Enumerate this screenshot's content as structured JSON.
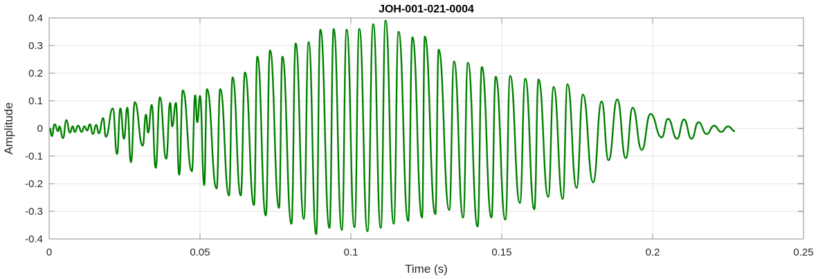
{
  "chart_data": {
    "type": "line",
    "title": "JOH-001-021-0004",
    "xlabel": "Time (s)",
    "ylabel": "Amplitude",
    "xlim": [
      0,
      0.25
    ],
    "ylim": [
      -0.4,
      0.4
    ],
    "grid": true,
    "xticks": [
      0,
      0.05,
      0.1,
      0.15,
      0.2,
      0.25
    ],
    "xtick_labels": [
      "0",
      "0.05",
      "0.1",
      "0.15",
      "0.2",
      "0.25"
    ],
    "yticks": [
      -0.4,
      -0.3,
      -0.2,
      -0.1,
      0,
      0.1,
      0.2,
      0.3,
      0.4
    ],
    "ytick_labels": [
      "-0.4",
      "-0.3",
      "-0.2",
      "-0.1",
      "0",
      "0.1",
      "0.2",
      "0.3",
      "0.4"
    ],
    "series": [
      {
        "name": "waveform",
        "color": "#008000",
        "note_points_are_local_extrema": true,
        "x": [
          0.0002,
          0.0009,
          0.0018,
          0.003,
          0.0034,
          0.0046,
          0.0057,
          0.0069,
          0.0078,
          0.0085,
          0.0096,
          0.0108,
          0.0117,
          0.0126,
          0.0135,
          0.0145,
          0.0156,
          0.0165,
          0.0179,
          0.0188,
          0.0211,
          0.0225,
          0.0236,
          0.0248,
          0.0259,
          0.0271,
          0.0284,
          0.031,
          0.0321,
          0.0328,
          0.034,
          0.0353,
          0.0367,
          0.0388,
          0.0401,
          0.0408,
          0.042,
          0.0431,
          0.0443,
          0.0473,
          0.0484,
          0.0491,
          0.05,
          0.0514,
          0.0523,
          0.0555,
          0.0567,
          0.0596,
          0.0608,
          0.0635,
          0.0649,
          0.0679,
          0.069,
          0.0718,
          0.0732,
          0.0762,
          0.0773,
          0.0803,
          0.0817,
          0.0844,
          0.086,
          0.0885,
          0.0899,
          0.0929,
          0.0943,
          0.097,
          0.0986,
          0.1012,
          0.1028,
          0.1055,
          0.1074,
          0.1099,
          0.1115,
          0.1142,
          0.1158,
          0.119,
          0.1204,
          0.1236,
          0.1245,
          0.128,
          0.1291,
          0.1326,
          0.1342,
          0.1372,
          0.1388,
          0.142,
          0.1434,
          0.1466,
          0.148,
          0.1512,
          0.1528,
          0.156,
          0.1578,
          0.1608,
          0.1622,
          0.1654,
          0.1672,
          0.1702,
          0.1718,
          0.1748,
          0.1769,
          0.1803,
          0.1831,
          0.1854,
          0.1883,
          0.1911,
          0.1934,
          0.1964,
          0.1993,
          0.203,
          0.2051,
          0.2081,
          0.2104,
          0.2129,
          0.2152,
          0.2179,
          0.2204,
          0.2227,
          0.225,
          0.2273
        ],
        "y": [
          0,
          -0.0275,
          0.015,
          -0.01,
          0.0075,
          -0.035,
          0.03,
          -0.015,
          0.0075,
          -0.0125,
          0.01,
          -0.0125,
          0.0075,
          -0.0075,
          0.015,
          -0.02,
          0.0125,
          -0.0175,
          0.0375,
          -0.03,
          0.0725,
          -0.0925,
          0.0725,
          -0.0375,
          0.075,
          -0.1225,
          0.095,
          -0.0625,
          0.05,
          -0.015,
          0.085,
          -0.1425,
          0.1125,
          -0.11,
          0.0925,
          0.0075,
          0.0925,
          -0.1675,
          0.1375,
          -0.155,
          0.12,
          0.0225,
          0.1175,
          -0.205,
          0.1425,
          -0.2175,
          0.1425,
          -0.2425,
          0.185,
          -0.2425,
          0.2025,
          -0.2775,
          0.26,
          -0.315,
          0.2825,
          -0.2875,
          0.26,
          -0.345,
          0.3075,
          -0.3275,
          0.3125,
          -0.3825,
          0.3575,
          -0.36,
          0.36,
          -0.3675,
          0.3575,
          -0.3575,
          0.36,
          -0.3725,
          0.3775,
          -0.36,
          0.39,
          -0.345,
          0.35,
          -0.335,
          0.33,
          -0.3225,
          0.3325,
          -0.31,
          0.285,
          -0.295,
          0.2425,
          -0.3225,
          0.2375,
          -0.355,
          0.2225,
          -0.3225,
          0.1875,
          -0.33,
          0.19,
          -0.27,
          0.18,
          -0.2925,
          0.1775,
          -0.2475,
          0.15,
          -0.255,
          0.16,
          -0.215,
          0.1225,
          -0.195,
          0.0975,
          -0.115,
          0.105,
          -0.1075,
          0.075,
          -0.0775,
          0.0525,
          -0.0325,
          0.035,
          -0.0375,
          0.0325,
          -0.0375,
          0.0225,
          -0.02,
          0.01,
          -0.0125,
          0.0075,
          -0.01
        ]
      }
    ]
  }
}
